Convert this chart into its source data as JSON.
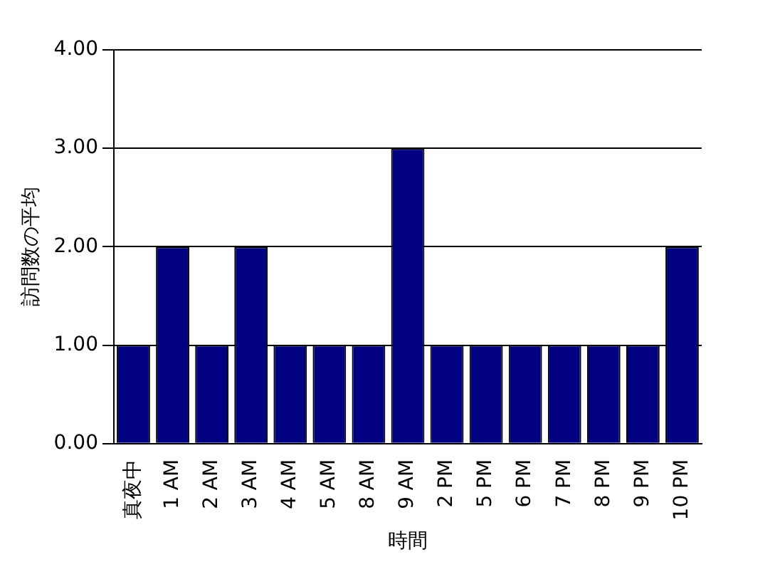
{
  "chart_data": {
    "type": "bar",
    "xlabel": "時間",
    "ylabel": "訪問数の平均",
    "categories": [
      "真夜中",
      "1 AM",
      "2 AM",
      "3 AM",
      "4 AM",
      "5 AM",
      "8 AM",
      "9 AM",
      "2 PM",
      "5 PM",
      "6 PM",
      "7 PM",
      "8 PM",
      "9 PM",
      "10 PM"
    ],
    "values": [
      1,
      2,
      1,
      2,
      1,
      1,
      1,
      3,
      1,
      1,
      1,
      1,
      1,
      1,
      2
    ],
    "color": "#000080",
    "ylim": [
      0,
      4
    ],
    "yticks": [
      {
        "value": 0,
        "label": "0.00"
      },
      {
        "value": 1,
        "label": "1.00"
      },
      {
        "value": 2,
        "label": "2.00"
      },
      {
        "value": 3,
        "label": "3.00"
      },
      {
        "value": 4,
        "label": "4.00"
      }
    ],
    "grid": "y",
    "legend": false
  }
}
